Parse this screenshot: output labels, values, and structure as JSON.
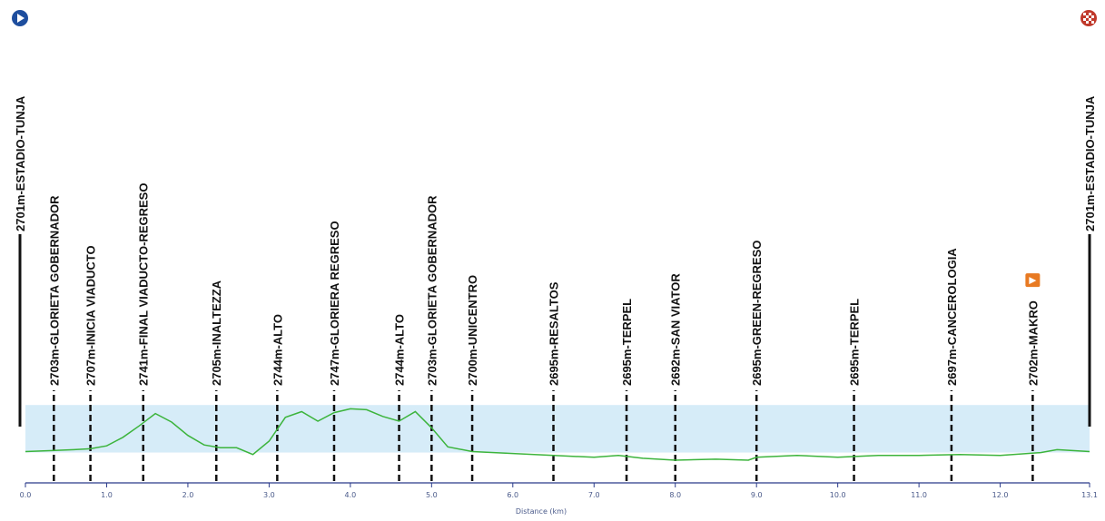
{
  "chart_data": {
    "type": "area",
    "xlabel": "Distance (km)",
    "xlim": [
      0,
      13.1
    ],
    "x_ticks": [
      "0.0",
      "1.0",
      "2.0",
      "3.0",
      "4.0",
      "5.0",
      "6.0",
      "7.0",
      "8.0",
      "9.0",
      "10.0",
      "11.0",
      "12.0",
      "13.1"
    ],
    "x_tick_values": [
      0,
      1,
      2,
      3,
      4,
      5,
      6,
      7,
      8,
      9,
      10,
      11,
      12,
      13.1
    ],
    "ylim": [
      2670,
      2775
    ],
    "band": [
      2700,
      2750
    ],
    "colors": {
      "line": "#3cb43c",
      "band": "#d6ecf8",
      "axis": "#2a3a8a",
      "marker": "#111111",
      "start": "#1e4e9e",
      "finish": "#c0392b",
      "sprint": "#e87a22"
    },
    "icons": {
      "start": "play-circle-icon",
      "finish": "checkered-flag-icon",
      "sprint": "sprint-icon"
    },
    "grid": false,
    "profile": {
      "x": [
        0,
        0.3,
        0.6,
        0.8,
        1.0,
        1.2,
        1.4,
        1.6,
        1.8,
        2.0,
        2.2,
        2.4,
        2.6,
        2.8,
        3.0,
        3.2,
        3.4,
        3.6,
        3.8,
        4.0,
        4.2,
        4.4,
        4.6,
        4.8,
        5.0,
        5.2,
        5.5,
        6.0,
        6.5,
        7.0,
        7.3,
        7.6,
        8.0,
        8.5,
        8.9,
        9.0,
        9.5,
        10.0,
        10.5,
        11.0,
        11.5,
        12.0,
        12.5,
        12.7,
        13.1
      ],
      "y": [
        2701,
        2702,
        2703,
        2704,
        2707,
        2716,
        2728,
        2741,
        2732,
        2718,
        2708,
        2705,
        2705,
        2698,
        2712,
        2737,
        2743,
        2733,
        2742,
        2746,
        2745,
        2738,
        2733,
        2743,
        2726,
        2706,
        2701,
        2699,
        2697,
        2695,
        2697,
        2694,
        2692,
        2693,
        2692,
        2695,
        2697,
        2695,
        2697,
        2697,
        2698,
        2697,
        2700,
        2703,
        2701
      ]
    },
    "waypoints": [
      {
        "x": 0.0,
        "label": "2701m-ESTADIO-TUNJA",
        "icon": "start"
      },
      {
        "x": 0.35,
        "label": "2703m-GLORIETA GOBERNADOR"
      },
      {
        "x": 0.8,
        "label": "2707m-INICIA VIADUCTO"
      },
      {
        "x": 1.45,
        "label": "2741m-FINAL VIADUCTO-REGRESO"
      },
      {
        "x": 2.35,
        "label": "2705m-INALTEZZA"
      },
      {
        "x": 3.1,
        "label": "2744m-ALTO"
      },
      {
        "x": 3.8,
        "label": "2747m-GLORIERA REGRESO"
      },
      {
        "x": 4.6,
        "label": "2744m-ALTO"
      },
      {
        "x": 5.0,
        "label": "2703m-GLORIETA GOBERNADOR"
      },
      {
        "x": 5.5,
        "label": "2700m-UNICENTRO"
      },
      {
        "x": 6.5,
        "label": "2695m-RESALTOS"
      },
      {
        "x": 7.4,
        "label": "2695m-TERPEL"
      },
      {
        "x": 8.0,
        "label": "2692m-SAN VIATOR"
      },
      {
        "x": 9.0,
        "label": "2695m-GREEN-REGRESO"
      },
      {
        "x": 10.2,
        "label": "2695m-TERPEL"
      },
      {
        "x": 11.4,
        "label": "2697m-CANCEROLOGIA"
      },
      {
        "x": 12.4,
        "label": "2702m-MAKRO",
        "icon": "sprint"
      },
      {
        "x": 13.1,
        "label": "2701m-ESTADIO-TUNJA",
        "icon": "finish"
      }
    ]
  }
}
